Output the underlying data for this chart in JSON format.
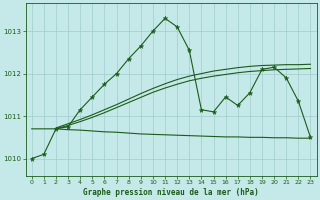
{
  "background_color": "#c5e8e8",
  "line_color": "#1a5c1a",
  "title": "Graphe pression niveau de la mer (hPa)",
  "xlim": [
    -0.5,
    23.5
  ],
  "ylim": [
    1009.6,
    1013.65
  ],
  "yticks": [
    1010,
    1011,
    1012,
    1013
  ],
  "xticks": [
    0,
    1,
    2,
    3,
    4,
    5,
    6,
    7,
    8,
    9,
    10,
    11,
    12,
    13,
    14,
    15,
    16,
    17,
    18,
    19,
    20,
    21,
    22,
    23
  ],
  "line1_x": [
    0,
    1,
    2,
    3,
    4,
    5,
    6,
    7,
    8,
    9,
    10,
    11,
    12,
    13,
    14,
    15,
    16,
    17,
    18,
    19,
    20,
    21,
    22,
    23
  ],
  "line1_y": [
    1010.0,
    1010.1,
    1010.7,
    1010.75,
    1011.15,
    1011.45,
    1011.75,
    1012.0,
    1012.35,
    1012.65,
    1013.0,
    1013.3,
    1013.1,
    1012.55,
    1011.15,
    1011.1,
    1011.45,
    1011.25,
    1011.55,
    1012.1,
    1012.15,
    1011.9,
    1011.35,
    1010.5
  ],
  "line2_x": [
    0,
    1,
    2,
    3,
    4,
    5,
    6,
    7,
    8,
    9,
    10,
    11,
    12,
    13,
    14,
    15,
    16,
    17,
    18,
    19,
    20,
    21,
    22,
    23
  ],
  "line2_y": [
    1010.7,
    1010.7,
    1010.7,
    1010.68,
    1010.67,
    1010.65,
    1010.63,
    1010.62,
    1010.6,
    1010.58,
    1010.57,
    1010.56,
    1010.55,
    1010.54,
    1010.53,
    1010.52,
    1010.51,
    1010.51,
    1010.5,
    1010.5,
    1010.49,
    1010.49,
    1010.48,
    1010.48
  ],
  "line3_x": [
    2,
    3,
    4,
    5,
    6,
    7,
    8,
    9,
    10,
    11,
    12,
    13,
    14,
    15,
    16,
    17,
    18,
    19,
    20,
    21,
    22,
    23
  ],
  "line3_y": [
    1010.72,
    1010.82,
    1010.92,
    1011.03,
    1011.15,
    1011.27,
    1011.4,
    1011.53,
    1011.65,
    1011.76,
    1011.86,
    1011.94,
    1012.0,
    1012.06,
    1012.1,
    1012.14,
    1012.17,
    1012.19,
    1012.2,
    1012.21,
    1012.21,
    1012.22
  ],
  "line4_x": [
    2,
    3,
    4,
    5,
    6,
    7,
    8,
    9,
    10,
    11,
    12,
    13,
    14,
    15,
    16,
    17,
    18,
    19,
    20,
    21,
    22,
    23
  ],
  "line4_y": [
    1010.7,
    1010.78,
    1010.87,
    1010.97,
    1011.08,
    1011.2,
    1011.32,
    1011.44,
    1011.56,
    1011.66,
    1011.75,
    1011.83,
    1011.89,
    1011.94,
    1011.98,
    1012.02,
    1012.05,
    1012.07,
    1012.09,
    1012.1,
    1012.11,
    1012.12
  ]
}
